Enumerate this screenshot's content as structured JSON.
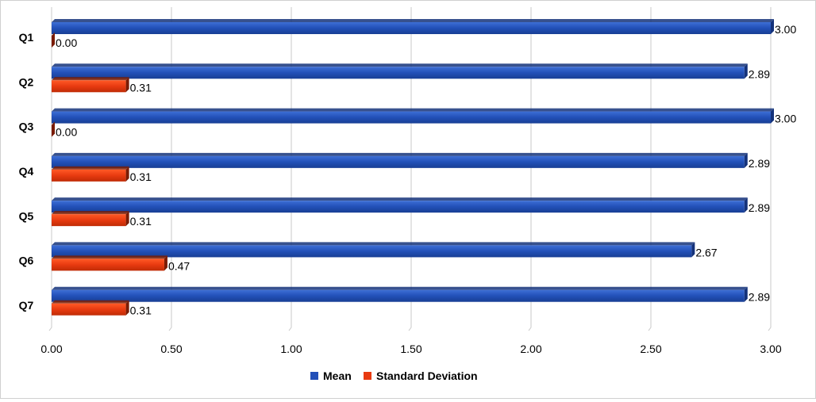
{
  "chart_data": {
    "type": "bar",
    "orientation": "horizontal",
    "categories": [
      "Q1",
      "Q2",
      "Q3",
      "Q4",
      "Q5",
      "Q6",
      "Q7"
    ],
    "series": [
      {
        "name": "Mean",
        "color": "#2250b8",
        "values": [
          3.0,
          2.89,
          3.0,
          2.89,
          2.89,
          2.67,
          2.89
        ],
        "labels": [
          "3.00",
          "2.89",
          "3.00",
          "2.89",
          "2.89",
          "2.67",
          "2.89"
        ]
      },
      {
        "name": "Standard Deviation",
        "color": "#e83a10",
        "values": [
          0.0,
          0.31,
          0.0,
          0.31,
          0.31,
          0.47,
          0.31
        ],
        "labels": [
          "0.00",
          "0.31",
          "0.00",
          "0.31",
          "0.31",
          "0.47",
          "0.31"
        ]
      }
    ],
    "xlim": [
      0,
      3
    ],
    "xticks": [
      0,
      0.5,
      1.0,
      1.5,
      2.0,
      2.5,
      3.0
    ],
    "xtick_labels": [
      "0.00",
      "0.50",
      "1.00",
      "1.50",
      "2.00",
      "2.50",
      "3.00"
    ],
    "grid": "vertical",
    "legend_position": "bottom",
    "title": "",
    "xlabel": "",
    "ylabel": ""
  }
}
